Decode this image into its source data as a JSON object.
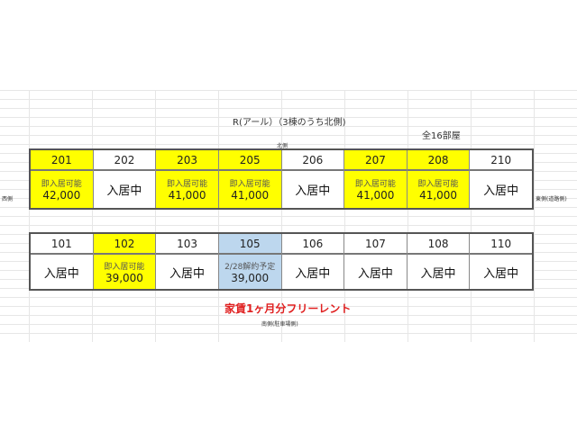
{
  "title": "R(アール）（3棟のうち北側)",
  "total_rooms": "全16部屋",
  "north": "北側",
  "west": "西側",
  "east": "東側(道路側)",
  "south": "南側(駐車場側)",
  "promo": "家賃1ヶ月分フリーレント",
  "colors": {
    "available": "#ffff00",
    "scheduled": "#bdd7ee",
    "promo": "#e02020"
  },
  "floor2": [
    {
      "room": "201",
      "status": "即入居可能",
      "rent": "42,000",
      "state": "available"
    },
    {
      "room": "202",
      "status": "入居中",
      "rent": "",
      "state": "occupied"
    },
    {
      "room": "203",
      "status": "即入居可能",
      "rent": "41,000",
      "state": "available"
    },
    {
      "room": "205",
      "status": "即入居可能",
      "rent": "41,000",
      "state": "available"
    },
    {
      "room": "206",
      "status": "入居中",
      "rent": "",
      "state": "occupied"
    },
    {
      "room": "207",
      "status": "即入居可能",
      "rent": "41,000",
      "state": "available"
    },
    {
      "room": "208",
      "status": "即入居可能",
      "rent": "41,000",
      "state": "available"
    },
    {
      "room": "210",
      "status": "入居中",
      "rent": "",
      "state": "occupied"
    }
  ],
  "floor1": [
    {
      "room": "101",
      "status": "入居中",
      "rent": "",
      "state": "occupied"
    },
    {
      "room": "102",
      "status": "即入居可能",
      "rent": "39,000",
      "state": "available"
    },
    {
      "room": "103",
      "status": "入居中",
      "rent": "",
      "state": "occupied"
    },
    {
      "room": "105",
      "status": "2/28解約予定",
      "rent": "39,000",
      "state": "scheduled"
    },
    {
      "room": "106",
      "status": "入居中",
      "rent": "",
      "state": "occupied"
    },
    {
      "room": "107",
      "status": "入居中",
      "rent": "",
      "state": "occupied"
    },
    {
      "room": "108",
      "status": "入居中",
      "rent": "",
      "state": "occupied"
    },
    {
      "room": "110",
      "status": "入居中",
      "rent": "",
      "state": "occupied"
    }
  ]
}
